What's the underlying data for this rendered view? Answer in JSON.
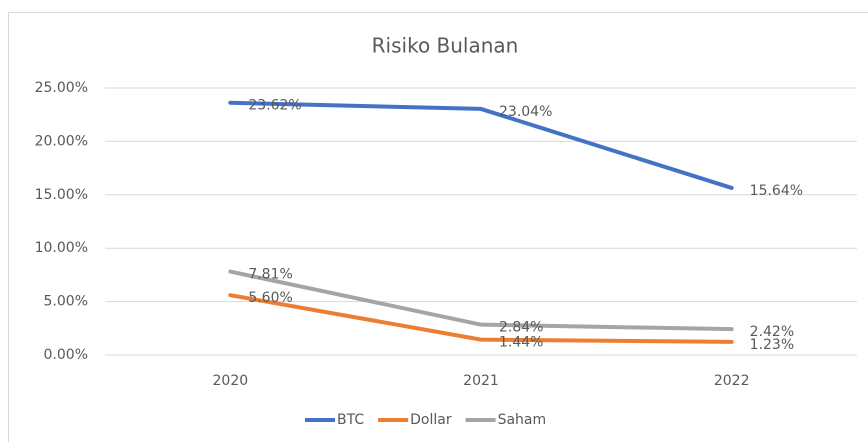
{
  "chart_data": {
    "type": "line",
    "title": "Risiko Bulanan",
    "categories": [
      "2020",
      "2021",
      "2022"
    ],
    "series": [
      {
        "name": "BTC",
        "color": "#4472c4",
        "values": [
          23.62,
          23.04,
          15.64
        ],
        "value_labels": [
          "23.62%",
          "23.04%",
          "15.64%"
        ]
      },
      {
        "name": "Dollar",
        "color": "#ed7d31",
        "values": [
          5.6,
          1.44,
          1.23
        ],
        "value_labels": [
          "5.60%",
          "1.44%",
          "1.23%"
        ]
      },
      {
        "name": "Saham",
        "color": "#a5a5a5",
        "values": [
          7.81,
          2.84,
          2.42
        ],
        "value_labels": [
          "7.81%",
          "2.84%",
          "2.42%"
        ]
      }
    ],
    "ylim": [
      0,
      25
    ],
    "yticks": [
      {
        "value": 0,
        "label": "0.00%"
      },
      {
        "value": 5,
        "label": "5.00%"
      },
      {
        "value": 10,
        "label": "10.00%"
      },
      {
        "value": 15,
        "label": "15.00%"
      },
      {
        "value": 20,
        "label": "20.00%"
      },
      {
        "value": 25,
        "label": "25.00%"
      }
    ],
    "grid": true,
    "legend": "bottom"
  }
}
